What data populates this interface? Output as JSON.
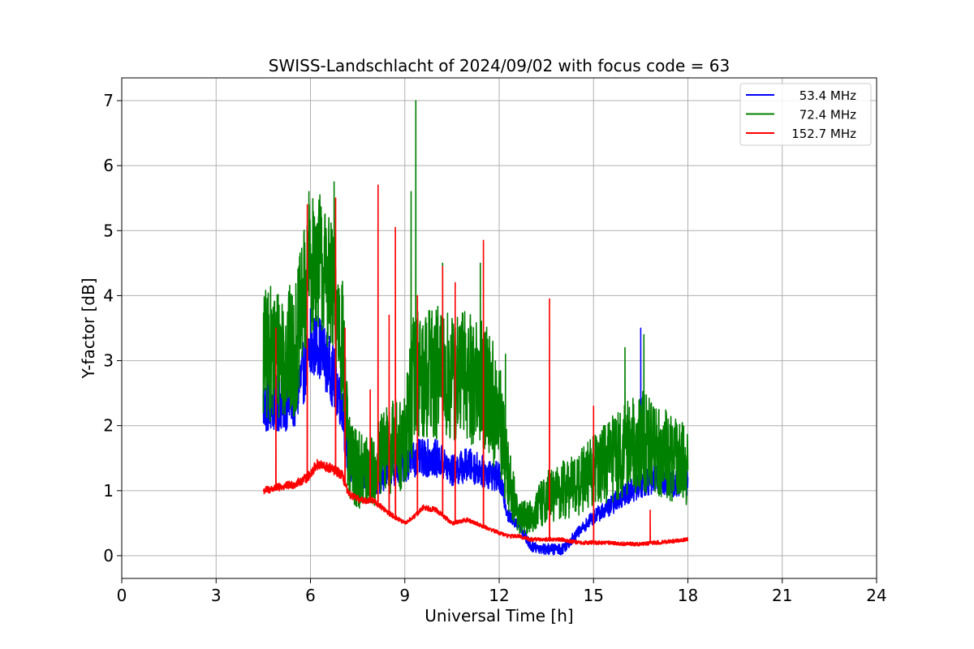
{
  "chart_data": {
    "type": "line",
    "title": "SWISS-Landschlacht of 2024/09/02 with focus code = 63",
    "xlabel": "Universal Time [h]",
    "ylabel": "Y-factor [dB]",
    "xlim": [
      0,
      24
    ],
    "ylim": [
      -0.35,
      7.35
    ],
    "xticks": [
      0,
      3,
      6,
      9,
      12,
      15,
      18,
      21,
      24
    ],
    "yticks": [
      0,
      1,
      2,
      3,
      4,
      5,
      6,
      7
    ],
    "grid": true,
    "legend_position": "top-right",
    "series": [
      {
        "name": "53.4 MHz",
        "color": "#0000ff",
        "x": [
          4.5,
          5.0,
          5.5,
          5.9,
          6.2,
          6.6,
          7.0,
          7.2,
          7.6,
          8.0,
          8.5,
          9.0,
          9.3,
          9.6,
          10.0,
          10.5,
          11.0,
          11.5,
          12.0,
          12.3,
          12.6,
          13.0,
          13.5,
          14.0,
          14.5,
          15.0,
          15.5,
          16.0,
          16.5,
          17.0,
          17.5,
          18.0
        ],
        "y": [
          2.3,
          2.35,
          2.4,
          3.0,
          3.3,
          2.9,
          2.4,
          1.4,
          1.2,
          1.1,
          1.3,
          1.4,
          1.5,
          1.5,
          1.5,
          1.3,
          1.4,
          1.3,
          1.2,
          0.6,
          0.5,
          0.15,
          0.1,
          0.1,
          0.35,
          0.6,
          0.75,
          0.95,
          1.1,
          1.2,
          1.1,
          1.15
        ]
      },
      {
        "name": "72.4 MHz",
        "color": "#008000",
        "x": [
          4.5,
          5.0,
          5.5,
          5.9,
          6.2,
          6.6,
          7.0,
          7.2,
          7.6,
          8.0,
          8.5,
          9.0,
          9.3,
          9.6,
          10.0,
          10.5,
          11.0,
          11.5,
          12.0,
          12.3,
          12.6,
          13.0,
          13.5,
          14.0,
          14.5,
          15.0,
          15.5,
          16.0,
          16.5,
          17.0,
          17.5,
          18.0
        ],
        "y": [
          3.05,
          3.15,
          3.1,
          4.3,
          4.6,
          4.2,
          3.4,
          1.5,
          1.3,
          1.3,
          1.7,
          1.7,
          2.8,
          2.8,
          2.8,
          2.7,
          2.8,
          2.6,
          2.1,
          1.2,
          0.6,
          0.6,
          0.9,
          1.0,
          1.1,
          1.3,
          1.45,
          1.65,
          1.75,
          1.7,
          1.5,
          1.4
        ]
      },
      {
        "name": "152.7 MHz",
        "color": "#ff0000",
        "x": [
          4.5,
          5.0,
          5.5,
          5.9,
          6.2,
          6.6,
          7.0,
          7.2,
          7.6,
          8.0,
          8.5,
          9.0,
          9.3,
          9.6,
          10.0,
          10.5,
          11.0,
          11.5,
          12.0,
          12.3,
          12.6,
          13.0,
          13.5,
          14.0,
          14.5,
          15.0,
          15.5,
          16.0,
          16.5,
          17.0,
          17.5,
          18.0
        ],
        "y": [
          1.0,
          1.05,
          1.1,
          1.2,
          1.4,
          1.35,
          1.25,
          0.95,
          0.85,
          0.85,
          0.65,
          0.5,
          0.6,
          0.75,
          0.7,
          0.5,
          0.55,
          0.45,
          0.35,
          0.3,
          0.3,
          0.25,
          0.25,
          0.25,
          0.2,
          0.2,
          0.2,
          0.18,
          0.18,
          0.2,
          0.22,
          0.25
        ]
      }
    ],
    "spikes": [
      {
        "series": 0,
        "x": 6.0,
        "y": 3.8
      },
      {
        "series": 0,
        "x": 6.8,
        "y": 3.6
      },
      {
        "series": 0,
        "x": 16.5,
        "y": 3.5
      },
      {
        "series": 1,
        "x": 5.95,
        "y": 5.6
      },
      {
        "series": 1,
        "x": 6.3,
        "y": 5.55
      },
      {
        "series": 1,
        "x": 6.75,
        "y": 5.75
      },
      {
        "series": 1,
        "x": 9.2,
        "y": 5.6
      },
      {
        "series": 1,
        "x": 9.35,
        "y": 7.0
      },
      {
        "series": 1,
        "x": 10.2,
        "y": 4.5
      },
      {
        "series": 1,
        "x": 11.4,
        "y": 4.5
      },
      {
        "series": 1,
        "x": 12.2,
        "y": 3.1
      },
      {
        "series": 1,
        "x": 16.0,
        "y": 3.2
      },
      {
        "series": 1,
        "x": 16.6,
        "y": 3.4
      },
      {
        "series": 2,
        "x": 4.9,
        "y": 3.5
      },
      {
        "series": 2,
        "x": 5.9,
        "y": 5.4
      },
      {
        "series": 2,
        "x": 6.8,
        "y": 5.5
      },
      {
        "series": 2,
        "x": 7.1,
        "y": 3.5
      },
      {
        "series": 2,
        "x": 7.9,
        "y": 2.55
      },
      {
        "series": 2,
        "x": 8.15,
        "y": 5.7
      },
      {
        "series": 2,
        "x": 8.5,
        "y": 3.7
      },
      {
        "series": 2,
        "x": 8.7,
        "y": 5.05
      },
      {
        "series": 2,
        "x": 9.4,
        "y": 4.0
      },
      {
        "series": 2,
        "x": 10.2,
        "y": 4.45
      },
      {
        "series": 2,
        "x": 10.6,
        "y": 4.2
      },
      {
        "series": 2,
        "x": 11.5,
        "y": 4.85
      },
      {
        "series": 2,
        "x": 13.6,
        "y": 3.95
      },
      {
        "series": 2,
        "x": 15.0,
        "y": 2.3
      },
      {
        "series": 2,
        "x": 16.8,
        "y": 0.7
      }
    ]
  }
}
